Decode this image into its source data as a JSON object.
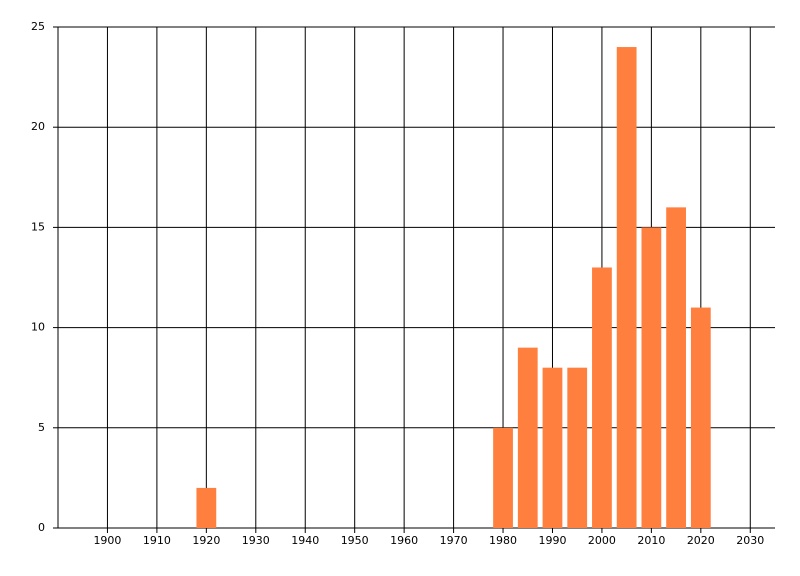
{
  "chart_data": {
    "type": "bar",
    "x": [
      1920,
      1980,
      1985,
      1990,
      1995,
      2000,
      2005,
      2010,
      2015,
      2020
    ],
    "values": [
      2,
      5,
      9,
      8,
      8,
      13,
      24,
      15,
      16,
      11
    ],
    "color": "#ff7f3f",
    "xlim": [
      1890,
      2035
    ],
    "xticks": [
      1900,
      1910,
      1920,
      1930,
      1940,
      1950,
      1960,
      1970,
      1980,
      1990,
      2000,
      2010,
      2020,
      2030
    ],
    "ylim": [
      0,
      25
    ],
    "yticks": [
      0,
      5,
      10,
      15,
      20,
      25
    ],
    "grid": true
  }
}
